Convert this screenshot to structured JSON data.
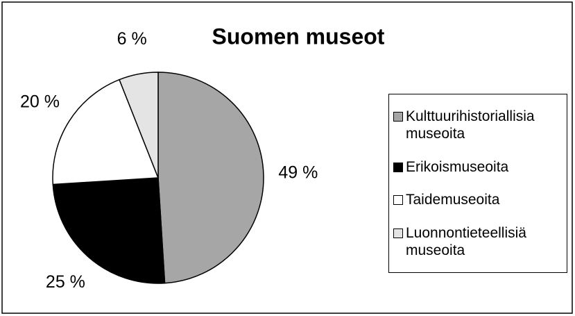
{
  "chart_data": {
    "type": "pie",
    "title": "Suomen museot",
    "categories": [
      "Kulttuurihistoriallisia museoita",
      "Erikoismuseoita",
      "Taidemuseoita",
      "Luonnontieteellisiä museoita"
    ],
    "values": [
      49,
      25,
      20,
      6
    ],
    "value_labels": [
      "49 %",
      "25 %",
      "20 %",
      "6 %"
    ],
    "colors": [
      "#a6a6a6",
      "#000000",
      "#ffffff",
      "#e4e4e4"
    ],
    "legend": "right"
  }
}
